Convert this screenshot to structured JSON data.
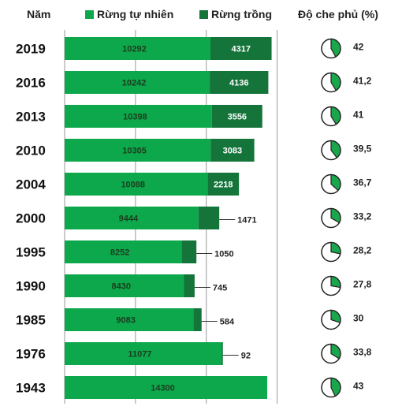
{
  "legend": {
    "year_header": "Năm",
    "natural_label": "Rừng tự nhiên",
    "planted_label": "Rừng trồng",
    "coverage_header": "Độ che phủ (%)"
  },
  "colors": {
    "natural": "#0da84c",
    "planted": "#14743a",
    "pie_fill": "#1aa64a",
    "pie_outline": "#222222",
    "grid": "#9a9a9a"
  },
  "chart_data": {
    "type": "bar",
    "stacked": true,
    "orientation": "horizontal",
    "categories": [
      "2019",
      "2016",
      "2013",
      "2010",
      "2004",
      "2000",
      "1995",
      "1990",
      "1985",
      "1976",
      "1943"
    ],
    "series": [
      {
        "name": "Rừng tự nhiên",
        "values": [
          10292,
          10242,
          10398,
          10305,
          10088,
          9444,
          8252,
          8430,
          9083,
          11077,
          14300
        ]
      },
      {
        "name": "Rừng trồng",
        "values": [
          4317,
          4136,
          3556,
          3083,
          2218,
          1471,
          1050,
          745,
          584,
          92,
          null
        ]
      }
    ],
    "coverage_percent": {
      "name": "Độ che phủ (%)",
      "values": [
        42,
        41.2,
        41,
        39.5,
        36.7,
        33.2,
        28.2,
        27.8,
        30,
        33.8,
        43
      ],
      "labels": [
        "42",
        "41,2",
        "41",
        "39,5",
        "36,7",
        "33,2",
        "28,2",
        "27,8",
        "30",
        "33,8",
        "43"
      ]
    },
    "xlim": [
      0,
      15000
    ],
    "grid": true
  }
}
